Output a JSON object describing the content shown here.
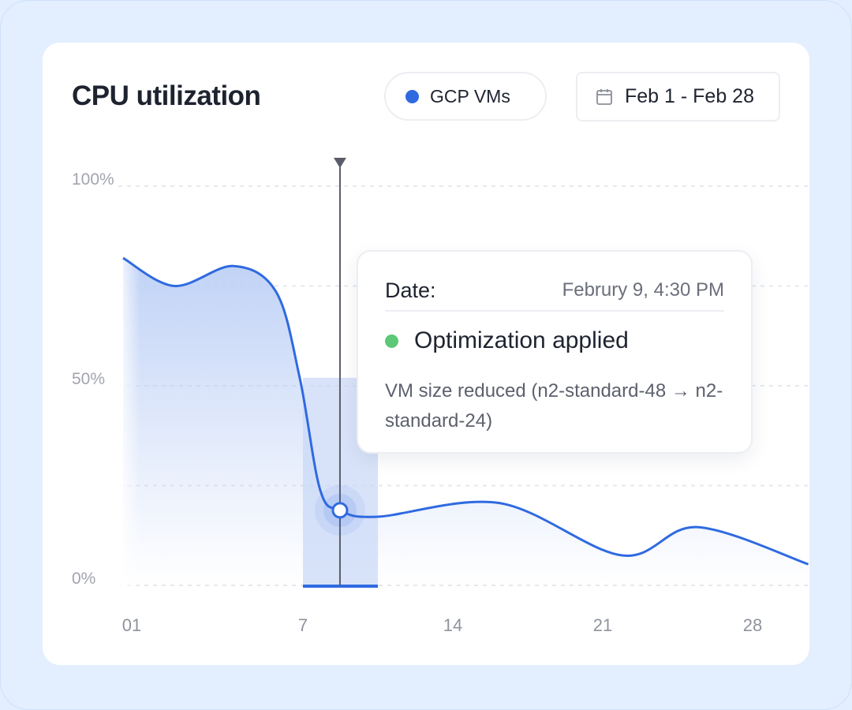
{
  "header": {
    "title": "CPU utilization",
    "series_filter": "GCP VMs",
    "date_range": "Feb 1 - Feb 28",
    "calendar_icon": "calendar-icon"
  },
  "colors": {
    "line": "#2f6ae0",
    "fill": "#b9cdf5",
    "highlight": "#c8d7f7",
    "marker_line": "#5a5d69",
    "status_green": "#5cc878",
    "background": "#e3efff"
  },
  "tooltip": {
    "label": "Date:",
    "date": "Februry 9, 4:30 PM",
    "status": "Optimization applied",
    "description": "VM size reduced (n2-standard-48 → n2-standard-24)"
  },
  "chart_data": {
    "type": "area",
    "title": "CPU utilization",
    "series": [
      {
        "name": "GCP VMs",
        "x": [
          -1.4,
          1,
          3.75,
          5.75,
          6.85,
          7.8,
          8.73,
          10.5,
          16.2,
          21.9,
          25.4,
          30.6
        ],
        "y": [
          82,
          75,
          80,
          73.5,
          52,
          24,
          18.8,
          17.2,
          20.6,
          7.5,
          14.6,
          5.3
        ]
      }
    ],
    "ylim": [
      0,
      100
    ],
    "y_ticks": [
      {
        "value": 0,
        "label": "0%"
      },
      {
        "value": 25,
        "label": ""
      },
      {
        "value": 50,
        "label": "50%"
      },
      {
        "value": 75,
        "label": ""
      },
      {
        "value": 100,
        "label": "100%"
      }
    ],
    "x_ticks": [
      {
        "value": 0,
        "label": "01"
      },
      {
        "value": 7,
        "label": "7"
      },
      {
        "value": 14,
        "label": "14"
      },
      {
        "value": 21,
        "label": "21"
      },
      {
        "value": 28,
        "label": "28"
      }
    ],
    "highlight_range": [
      7,
      10.5
    ],
    "marker": {
      "x": 8.73,
      "y": 18.8
    },
    "grid": true
  }
}
